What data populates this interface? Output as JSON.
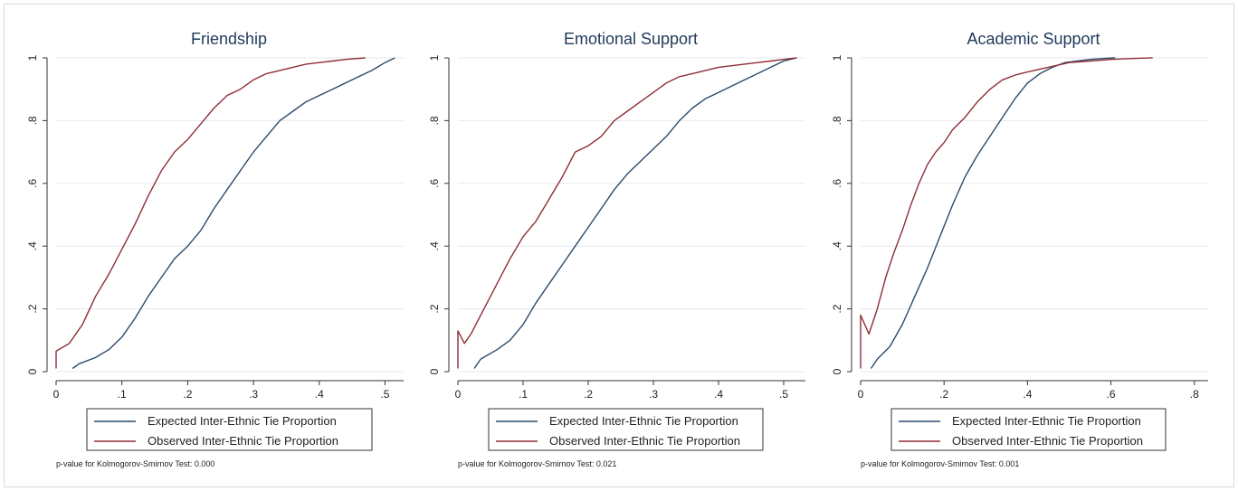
{
  "colors": {
    "expected": "#2b4a6b",
    "observed": "#8f2d37",
    "grid": "#e6eaee",
    "axis": "#333333"
  },
  "legend": {
    "expected": "Expected Inter-Ethnic Tie Proportion",
    "observed": "Observed Inter-Ethnic Tie Proportion"
  },
  "chart_data": [
    {
      "type": "line",
      "title": "Friendship",
      "xlim": [
        0,
        0.52
      ],
      "ylim": [
        0,
        1
      ],
      "xticks": [
        0,
        0.1,
        0.2,
        0.3,
        0.4,
        0.5
      ],
      "xtick_labels": [
        "0",
        ".1",
        ".2",
        ".3",
        ".4",
        ".5"
      ],
      "yticks": [
        0,
        0.2,
        0.4,
        0.6,
        0.8,
        1
      ],
      "ytick_labels": [
        "0",
        ".2",
        ".4",
        ".6",
        ".8",
        "1"
      ],
      "grid": true,
      "legend_position": "bottom",
      "note": "p-value for Kolmogorov-Smirnov Test: 0.000",
      "series": [
        {
          "name": "Expected Inter-Ethnic Tie Proportion",
          "x": [
            0.025,
            0.035,
            0.06,
            0.08,
            0.1,
            0.12,
            0.14,
            0.16,
            0.18,
            0.2,
            0.22,
            0.24,
            0.26,
            0.28,
            0.3,
            0.32,
            0.34,
            0.36,
            0.38,
            0.4,
            0.42,
            0.44,
            0.46,
            0.48,
            0.5,
            0.515
          ],
          "y": [
            0.01,
            0.025,
            0.045,
            0.07,
            0.11,
            0.17,
            0.24,
            0.3,
            0.36,
            0.4,
            0.45,
            0.52,
            0.58,
            0.64,
            0.7,
            0.75,
            0.8,
            0.83,
            0.86,
            0.88,
            0.9,
            0.92,
            0.94,
            0.96,
            0.985,
            1.0
          ]
        },
        {
          "name": "Observed Inter-Ethnic Tie Proportion",
          "x": [
            0.0,
            0.0,
            0.02,
            0.04,
            0.06,
            0.08,
            0.1,
            0.12,
            0.14,
            0.16,
            0.18,
            0.2,
            0.22,
            0.24,
            0.26,
            0.28,
            0.3,
            0.32,
            0.34,
            0.36,
            0.38,
            0.4,
            0.42,
            0.44,
            0.47
          ],
          "y": [
            0.01,
            0.065,
            0.09,
            0.15,
            0.24,
            0.31,
            0.39,
            0.47,
            0.56,
            0.64,
            0.7,
            0.74,
            0.79,
            0.84,
            0.88,
            0.9,
            0.93,
            0.95,
            0.96,
            0.97,
            0.98,
            0.985,
            0.99,
            0.995,
            1.0
          ]
        }
      ]
    },
    {
      "type": "line",
      "title": "Emotional Support",
      "xlim": [
        0,
        0.525
      ],
      "ylim": [
        0,
        1
      ],
      "xticks": [
        0,
        0.1,
        0.2,
        0.3,
        0.4,
        0.5
      ],
      "xtick_labels": [
        "0",
        ".1",
        ".2",
        ".3",
        ".4",
        ".5"
      ],
      "yticks": [
        0,
        0.2,
        0.4,
        0.6,
        0.8,
        1
      ],
      "ytick_labels": [
        "0",
        ".2",
        ".4",
        ".6",
        ".8",
        "1"
      ],
      "grid": true,
      "legend_position": "bottom",
      "note": "p-value for Kolmogorov-Smirnov Test: 0.021",
      "series": [
        {
          "name": "Expected Inter-Ethnic Tie Proportion",
          "x": [
            0.025,
            0.035,
            0.06,
            0.08,
            0.1,
            0.12,
            0.14,
            0.16,
            0.18,
            0.2,
            0.22,
            0.24,
            0.26,
            0.28,
            0.3,
            0.32,
            0.34,
            0.36,
            0.38,
            0.4,
            0.42,
            0.44,
            0.46,
            0.48,
            0.5,
            0.52
          ],
          "y": [
            0.01,
            0.04,
            0.07,
            0.1,
            0.15,
            0.22,
            0.28,
            0.34,
            0.4,
            0.46,
            0.52,
            0.58,
            0.63,
            0.67,
            0.71,
            0.75,
            0.8,
            0.84,
            0.87,
            0.89,
            0.91,
            0.93,
            0.95,
            0.97,
            0.99,
            1.0
          ]
        },
        {
          "name": "Observed Inter-Ethnic Tie Proportion",
          "x": [
            0.0,
            0.0,
            0.01,
            0.02,
            0.04,
            0.06,
            0.08,
            0.1,
            0.12,
            0.14,
            0.16,
            0.18,
            0.2,
            0.22,
            0.24,
            0.26,
            0.28,
            0.3,
            0.32,
            0.34,
            0.36,
            0.38,
            0.4,
            0.42,
            0.44,
            0.46,
            0.48,
            0.5,
            0.52
          ],
          "y": [
            0.01,
            0.13,
            0.09,
            0.12,
            0.2,
            0.28,
            0.36,
            0.43,
            0.48,
            0.55,
            0.62,
            0.7,
            0.72,
            0.75,
            0.8,
            0.83,
            0.86,
            0.89,
            0.92,
            0.94,
            0.95,
            0.96,
            0.97,
            0.975,
            0.98,
            0.985,
            0.99,
            0.995,
            1.0
          ]
        }
      ]
    },
    {
      "type": "line",
      "title": "Academic Support",
      "xlim": [
        0,
        0.82
      ],
      "ylim": [
        0,
        1
      ],
      "xticks": [
        0,
        0.2,
        0.4,
        0.6,
        0.8
      ],
      "xtick_labels": [
        "0",
        ".2",
        ".4",
        ".6",
        ".8"
      ],
      "yticks": [
        0,
        0.2,
        0.4,
        0.6,
        0.8,
        1
      ],
      "ytick_labels": [
        "0",
        ".2",
        ".4",
        ".6",
        ".8",
        "1"
      ],
      "grid": true,
      "legend_position": "bottom",
      "note": "p-value for Kolmogorov-Smirnov Test: 0.001",
      "series": [
        {
          "name": "Expected Inter-Ethnic Tie Proportion",
          "x": [
            0.025,
            0.04,
            0.07,
            0.1,
            0.13,
            0.16,
            0.19,
            0.22,
            0.25,
            0.28,
            0.31,
            0.34,
            0.37,
            0.4,
            0.43,
            0.46,
            0.49,
            0.52,
            0.55,
            0.58,
            0.61
          ],
          "y": [
            0.01,
            0.04,
            0.08,
            0.15,
            0.24,
            0.33,
            0.43,
            0.53,
            0.62,
            0.69,
            0.75,
            0.81,
            0.87,
            0.92,
            0.95,
            0.97,
            0.985,
            0.99,
            0.995,
            0.998,
            1.0
          ]
        },
        {
          "name": "Observed Inter-Ethnic Tie Proportion",
          "x": [
            0.0,
            0.0,
            0.02,
            0.04,
            0.06,
            0.08,
            0.1,
            0.12,
            0.14,
            0.16,
            0.18,
            0.2,
            0.22,
            0.25,
            0.28,
            0.31,
            0.34,
            0.37,
            0.4,
            0.45,
            0.5,
            0.55,
            0.6,
            0.65,
            0.7
          ],
          "y": [
            0.01,
            0.18,
            0.12,
            0.2,
            0.3,
            0.38,
            0.45,
            0.53,
            0.6,
            0.66,
            0.7,
            0.73,
            0.77,
            0.81,
            0.86,
            0.9,
            0.93,
            0.945,
            0.955,
            0.97,
            0.985,
            0.99,
            0.995,
            0.998,
            1.0
          ]
        }
      ]
    }
  ]
}
